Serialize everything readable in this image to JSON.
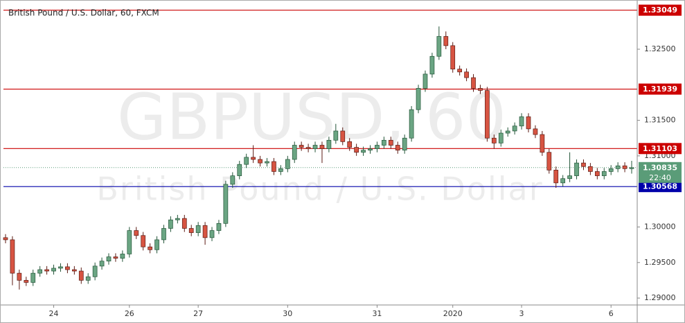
{
  "chart_data": {
    "type": "candlestick",
    "title": "British Pound / U.S. Dollar, 60, FXCM",
    "watermark": {
      "symbol": "GBPUSD, 60",
      "description": "British Pound / U.S. Dollar"
    },
    "categories": [
      null,
      null,
      null,
      null,
      null,
      null,
      null,
      "24",
      null,
      null,
      null,
      null,
      null,
      null,
      null,
      null,
      null,
      null,
      "26",
      null,
      null,
      null,
      null,
      null,
      null,
      null,
      null,
      null,
      "27",
      null,
      null,
      null,
      null,
      null,
      null,
      null,
      null,
      null,
      null,
      null,
      null,
      "30",
      null,
      null,
      null,
      null,
      null,
      null,
      null,
      null,
      null,
      null,
      null,
      null,
      "31",
      null,
      null,
      null,
      null,
      null,
      null,
      null,
      null,
      null,
      null,
      "2020",
      null,
      null,
      null,
      null,
      null,
      null,
      null,
      null,
      null,
      "3",
      null,
      null,
      null,
      null,
      null,
      null,
      null,
      null,
      null,
      null,
      null,
      null,
      "6",
      null,
      null,
      null
    ],
    "open": [
      1.2985,
      1.2982,
      1.2935,
      1.2925,
      1.2922,
      1.2935,
      1.294,
      1.2938,
      1.2942,
      1.2944,
      1.294,
      1.2938,
      1.2925,
      1.293,
      1.2945,
      1.2952,
      1.2958,
      1.2956,
      1.2962,
      1.2995,
      1.2988,
      1.2972,
      1.2968,
      1.2982,
      1.2998,
      1.301,
      1.3012,
      1.2998,
      1.2992,
      1.3002,
      1.2985,
      1.2995,
      1.3005,
      1.306,
      1.3072,
      1.3088,
      1.3098,
      1.3095,
      1.309,
      1.3092,
      1.3078,
      1.3082,
      1.3095,
      1.3115,
      1.3112,
      1.311,
      1.3115,
      1.311,
      1.3122,
      1.3135,
      1.312,
      1.3112,
      1.3105,
      1.3108,
      1.311,
      1.3115,
      1.3122,
      1.3115,
      1.3108,
      1.3125,
      1.3165,
      1.3195,
      1.3215,
      1.324,
      1.3268,
      1.3255,
      1.3222,
      1.3218,
      1.321,
      1.3195,
      1.3192,
      1.3125,
      1.3118,
      1.3132,
      1.3135,
      1.3142,
      1.3155,
      1.3138,
      1.313,
      1.3105,
      1.308,
      1.3062,
      1.3068,
      1.3072,
      1.309,
      1.3085,
      1.3078,
      1.3072,
      1.3078,
      1.3082,
      1.3086,
      1.3082
    ],
    "high": [
      1.299,
      1.2987,
      1.294,
      1.293,
      1.294,
      1.2945,
      1.2945,
      1.2947,
      1.2949,
      1.2949,
      1.2945,
      1.2943,
      1.2935,
      1.295,
      1.2957,
      1.2963,
      1.2963,
      1.2967,
      1.3,
      1.3,
      1.2993,
      1.2977,
      1.2987,
      1.3003,
      1.3015,
      1.3017,
      1.3017,
      1.3003,
      1.3007,
      1.3007,
      1.3,
      1.301,
      1.3065,
      1.3077,
      1.3093,
      1.3103,
      1.3115,
      1.31,
      1.3097,
      1.3097,
      1.3087,
      1.31,
      1.312,
      1.312,
      1.3117,
      1.312,
      1.312,
      1.3127,
      1.3145,
      1.314,
      1.3125,
      1.3117,
      1.3113,
      1.3115,
      1.312,
      1.3127,
      1.3127,
      1.312,
      1.313,
      1.317,
      1.32,
      1.322,
      1.3245,
      1.3282,
      1.3275,
      1.326,
      1.3227,
      1.3223,
      1.3215,
      1.32,
      1.3197,
      1.313,
      1.3137,
      1.314,
      1.3147,
      1.316,
      1.316,
      1.3143,
      1.3135,
      1.311,
      1.3085,
      1.3073,
      1.3105,
      1.3095,
      1.3095,
      1.309,
      1.3083,
      1.3083,
      1.3087,
      1.3091,
      1.3091,
      1.3093
    ],
    "low": [
      1.2977,
      1.2918,
      1.2912,
      1.2917,
      1.2917,
      1.293,
      1.2933,
      1.2933,
      1.2937,
      1.2935,
      1.2933,
      1.292,
      1.292,
      1.2925,
      1.294,
      1.2947,
      1.2951,
      1.2951,
      1.2957,
      1.2983,
      1.2967,
      1.2963,
      1.2963,
      1.2977,
      1.2993,
      1.3005,
      1.2993,
      1.2987,
      1.2987,
      1.2975,
      1.298,
      1.299,
      1.3,
      1.3055,
      1.3067,
      1.3083,
      1.309,
      1.3085,
      1.3085,
      1.3073,
      1.3073,
      1.3077,
      1.309,
      1.3107,
      1.3105,
      1.3105,
      1.309,
      1.3105,
      1.3117,
      1.3115,
      1.3107,
      1.31,
      1.31,
      1.3103,
      1.3105,
      1.311,
      1.311,
      1.3103,
      1.3103,
      1.312,
      1.316,
      1.319,
      1.321,
      1.3235,
      1.325,
      1.3217,
      1.3213,
      1.3205,
      1.319,
      1.3187,
      1.312,
      1.311,
      1.3113,
      1.3127,
      1.313,
      1.3137,
      1.3133,
      1.3125,
      1.31,
      1.3075,
      1.3055,
      1.3057,
      1.3063,
      1.3067,
      1.308,
      1.3073,
      1.3067,
      1.3067,
      1.3073,
      1.3077,
      1.3077,
      1.3075
    ],
    "close": [
      1.2982,
      1.2935,
      1.2925,
      1.2922,
      1.2935,
      1.294,
      1.2938,
      1.2942,
      1.2944,
      1.294,
      1.2938,
      1.2925,
      1.293,
      1.2945,
      1.2952,
      1.2958,
      1.2956,
      1.2962,
      1.2995,
      1.2988,
      1.2972,
      1.2968,
      1.2982,
      1.2998,
      1.301,
      1.3012,
      1.2998,
      1.2992,
      1.3002,
      1.2985,
      1.2995,
      1.3005,
      1.306,
      1.3072,
      1.3088,
      1.3098,
      1.3095,
      1.309,
      1.3092,
      1.3078,
      1.3082,
      1.3095,
      1.3115,
      1.3112,
      1.311,
      1.3115,
      1.311,
      1.3122,
      1.3135,
      1.312,
      1.3112,
      1.3105,
      1.3108,
      1.311,
      1.3115,
      1.3122,
      1.3115,
      1.3108,
      1.3125,
      1.3165,
      1.3195,
      1.3215,
      1.324,
      1.3268,
      1.3255,
      1.3222,
      1.3218,
      1.321,
      1.3195,
      1.3192,
      1.3125,
      1.3118,
      1.3132,
      1.3135,
      1.3142,
      1.3155,
      1.3138,
      1.313,
      1.3105,
      1.308,
      1.3062,
      1.3068,
      1.3072,
      1.309,
      1.3085,
      1.3078,
      1.3072,
      1.3078,
      1.3082,
      1.3086,
      1.3082,
      1.30835
    ],
    "up_color": "#6ba583",
    "down_color": "#d75442",
    "ylim": [
      1.28903,
      1.33192
    ],
    "yticks": [
      {
        "value": 1.29,
        "label": "1.29000"
      },
      {
        "value": 1.295,
        "label": "1.29500"
      },
      {
        "value": 1.3,
        "label": "1.30000"
      },
      {
        "value": 1.31,
        "label": "1.31000"
      },
      {
        "value": 1.315,
        "label": "1.31500"
      },
      {
        "value": 1.325,
        "label": "1.32500"
      }
    ],
    "levels": [
      {
        "value": 1.33049,
        "color": "#cc0000"
      },
      {
        "value": 1.31939,
        "color": "#cc0000"
      },
      {
        "value": 1.31103,
        "color": "#cc0000"
      },
      {
        "value": 1.30568,
        "color": "#0000aa"
      }
    ],
    "last_price": {
      "value": 1.30835,
      "color": "#5a9c78",
      "countdown": "22:40"
    }
  }
}
